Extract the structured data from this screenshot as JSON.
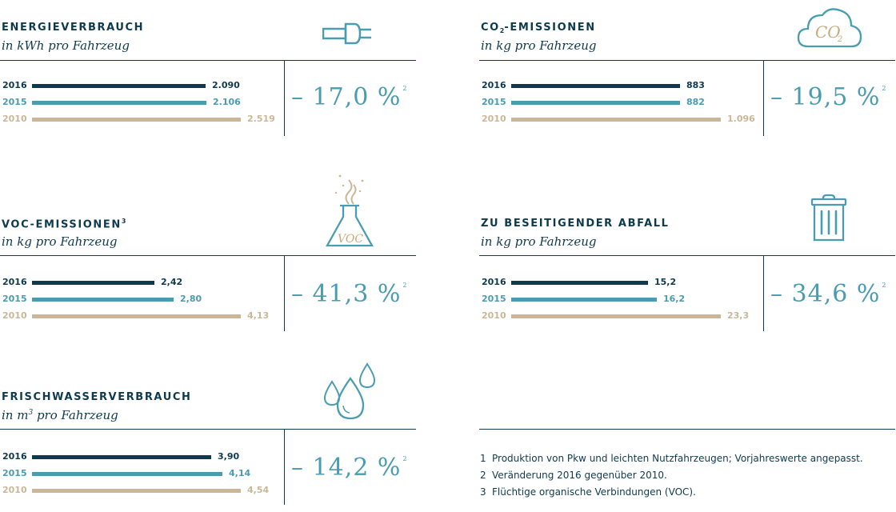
{
  "colors": {
    "y2016": "#0e3a4d",
    "y2015": "#4a9cb0",
    "y2010": "#cbb797",
    "line": "#0e3a4d",
    "pct": "#4a9cb0"
  },
  "chart_data": [
    {
      "type": "bar",
      "title": "ENERGIEVERBRAUCH",
      "subtitle": "in kWh pro Fahrzeug",
      "icon": "power-plug-icon",
      "categories": [
        "2016",
        "2015",
        "2010"
      ],
      "values": [
        2090,
        2106,
        2519
      ],
      "labels": [
        "2.090",
        "2.106",
        "2.519"
      ],
      "change": "– 17,0 %",
      "change_note": "2"
    },
    {
      "type": "bar",
      "title": "CO",
      "title_sub": "2",
      "title_rest": "-EMISSIONEN",
      "subtitle": "in kg pro Fahrzeug",
      "icon": "co2-cloud-icon",
      "icon_text": "CO",
      "icon_sub": "2",
      "categories": [
        "2016",
        "2015",
        "2010"
      ],
      "values": [
        883,
        882,
        1096
      ],
      "labels": [
        "883",
        "882",
        "1.096"
      ],
      "change": "– 19,5 %",
      "change_note": "2"
    },
    {
      "type": "bar",
      "title": "VOC-EMISSIONEN",
      "title_note": "3",
      "subtitle": "in kg pro Fahrzeug",
      "icon": "flask-icon",
      "icon_text": "VOC",
      "categories": [
        "2016",
        "2015",
        "2010"
      ],
      "values": [
        2.42,
        2.8,
        4.13
      ],
      "labels": [
        "2,42",
        "2,80",
        "4,13"
      ],
      "change": "– 41,3 %",
      "change_note": "2"
    },
    {
      "type": "bar",
      "title": "ZU BESEITIGENDER ABFALL",
      "subtitle": "in kg pro Fahrzeug",
      "icon": "trash-bin-icon",
      "categories": [
        "2016",
        "2015",
        "2010"
      ],
      "values": [
        15.2,
        16.2,
        23.3
      ],
      "labels": [
        "15,2",
        "16,2",
        "23,3"
      ],
      "change": "– 34,6 %",
      "change_note": "2"
    },
    {
      "type": "bar",
      "title": "FRISCHWASSERVERBRAUCH",
      "subtitle_pre": "in m",
      "subtitle_sup": "3",
      "subtitle_post": " pro Fahrzeug",
      "icon": "water-drops-icon",
      "categories": [
        "2016",
        "2015",
        "2010"
      ],
      "values": [
        3.9,
        4.14,
        4.54
      ],
      "labels": [
        "3,90",
        "4,14",
        "4,54"
      ],
      "change": "– 14,2 %",
      "change_note": "2"
    }
  ],
  "footnotes": [
    {
      "num": "1",
      "text": "Produktion von Pkw und leichten Nutzfahrzeugen; Vorjahreswerte angepasst."
    },
    {
      "num": "2",
      "text": "Veränderung 2016 gegenüber 2010."
    },
    {
      "num": "3",
      "text": "Flüchtige organische Verbindungen (VOC)."
    }
  ]
}
